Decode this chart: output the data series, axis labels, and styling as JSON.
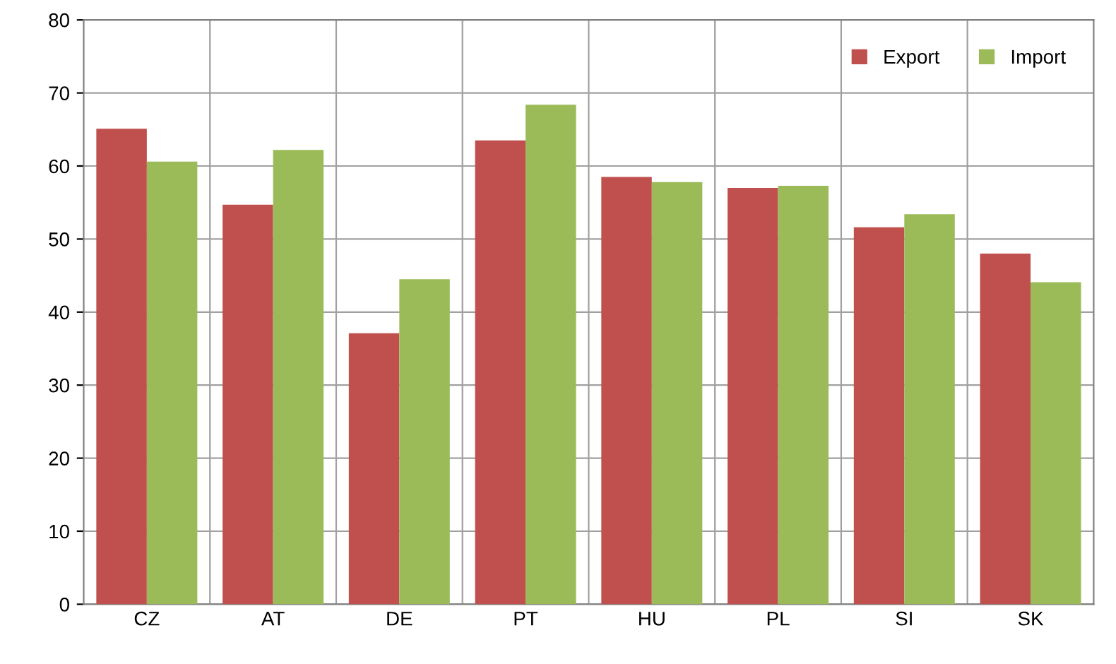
{
  "chart_data": {
    "type": "bar",
    "categories": [
      "CZ",
      "AT",
      "DE",
      "PT",
      "HU",
      "PL",
      "SI",
      "SK"
    ],
    "series": [
      {
        "name": "Export",
        "color": "#c0504d",
        "values": [
          65.1,
          54.7,
          37.1,
          63.5,
          58.5,
          57.0,
          51.6,
          48.0
        ]
      },
      {
        "name": "Import",
        "color": "#9bbb59",
        "values": [
          60.6,
          62.2,
          44.5,
          68.4,
          57.8,
          57.3,
          53.4,
          44.1
        ]
      }
    ],
    "ylim": [
      0,
      80
    ],
    "yticks": [
      0,
      10,
      20,
      30,
      40,
      50,
      60,
      70,
      80
    ],
    "grid": true,
    "legend": "top right"
  }
}
